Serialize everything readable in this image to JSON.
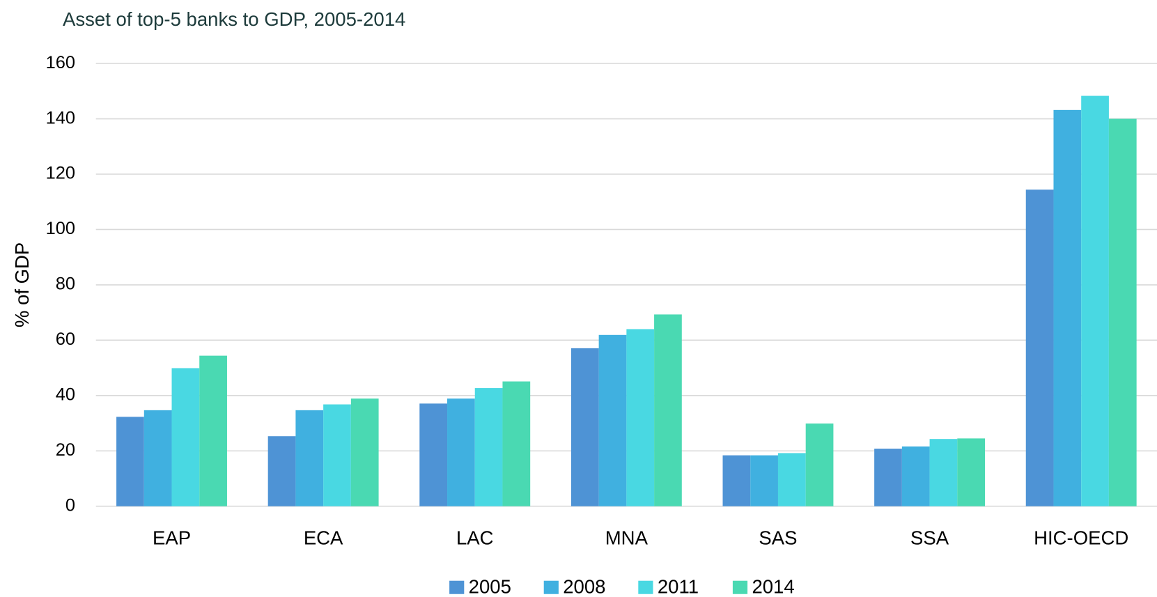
{
  "chart_data": {
    "type": "bar",
    "title": "Asset of top-5 banks to GDP, 2005-2014",
    "y_label": "% of GDP",
    "categories": [
      "EAP",
      "ECA",
      "LAC",
      "MNA",
      "SAS",
      "SSA",
      "HIC-OECD"
    ],
    "series": [
      {
        "name": "2005",
        "color": "#4e93d5",
        "values": [
          32.3,
          25.3,
          37.1,
          57.1,
          18.4,
          20.8,
          114.4
        ]
      },
      {
        "name": "2008",
        "color": "#40b0e0",
        "values": [
          34.7,
          34.7,
          38.9,
          61.9,
          18.4,
          21.6,
          143.2
        ]
      },
      {
        "name": "2011",
        "color": "#49d8e2",
        "values": [
          49.9,
          36.8,
          42.7,
          64.0,
          19.2,
          24.3,
          148.3
        ]
      },
      {
        "name": "2014",
        "color": "#4ad9b2",
        "values": [
          54.4,
          38.9,
          45.1,
          69.3,
          29.9,
          24.5,
          140.0
        ]
      }
    ],
    "ylim": [
      0,
      160
    ],
    "yticks": [
      0,
      20,
      40,
      60,
      80,
      100,
      120,
      140,
      160
    ],
    "grid": true,
    "legend": "bottom"
  }
}
